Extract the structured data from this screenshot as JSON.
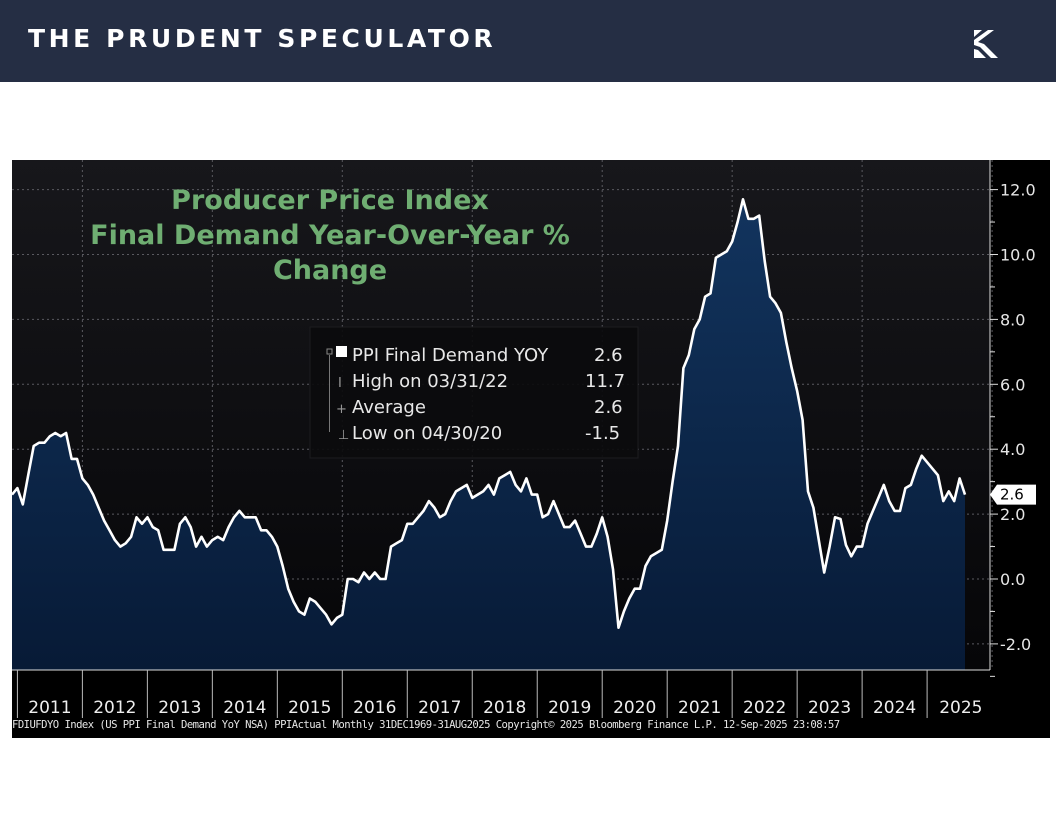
{
  "header": {
    "brand": "THE PRUDENT SPECULATOR",
    "logo_icon": "prudent-speculator-k-logo"
  },
  "colors": {
    "header_bg": "#252e44",
    "title_green": "#6fae72",
    "area_fill": "#0c2647",
    "line": "#ffffff",
    "plot_bg": "#111114"
  },
  "legend": {
    "series_label": "PPI Final Demand YOY",
    "series_value": "2.6",
    "rows": [
      {
        "label": "High on 03/31/22",
        "value": "11.7"
      },
      {
        "label": "Average",
        "value": "2.6"
      },
      {
        "label": "Low on 04/30/20",
        "value": "-1.5"
      }
    ]
  },
  "footer": "FDIUFDYO Index (US PPI Final Demand YoY NSA) PPIActual  Monthly 31DEC1969-31AUG2025 Copyright© 2025 Bloomberg Finance L.P.  12-Sep-2025 23:08:57",
  "chart_data": {
    "type": "area",
    "title_lines": [
      "Producer Price Index",
      "Final Demand Year-Over-Year %",
      "Change"
    ],
    "xlabel": "",
    "ylabel": "",
    "x_ticks": [
      "2011",
      "2012",
      "2013",
      "2014",
      "2015",
      "2016",
      "2017",
      "2018",
      "2019",
      "2020",
      "2021",
      "2022",
      "2023",
      "2024",
      "2025"
    ],
    "x_range": [
      "2010-12",
      "2025-08"
    ],
    "ylim": [
      -2.8,
      14.0
    ],
    "y_ticks": [
      "12.0",
      "10.0",
      "8.0",
      "6.0",
      "4.0",
      "2.0",
      "0.0",
      "-2.0"
    ],
    "y_axis_side": "right",
    "grid": true,
    "last_value_label": "2.6",
    "series": [
      {
        "name": "PPI Final Demand YOY",
        "points": [
          [
            "2010-12",
            2.6
          ],
          [
            "2011-01",
            2.8
          ],
          [
            "2011-02",
            2.3
          ],
          [
            "2011-03",
            3.2
          ],
          [
            "2011-04",
            4.1
          ],
          [
            "2011-05",
            4.2
          ],
          [
            "2011-06",
            4.2
          ],
          [
            "2011-07",
            4.4
          ],
          [
            "2011-08",
            4.5
          ],
          [
            "2011-09",
            4.4
          ],
          [
            "2011-10",
            4.5
          ],
          [
            "2011-11",
            3.7
          ],
          [
            "2011-12",
            3.7
          ],
          [
            "2012-01",
            3.1
          ],
          [
            "2012-02",
            2.9
          ],
          [
            "2012-03",
            2.6
          ],
          [
            "2012-04",
            2.2
          ],
          [
            "2012-05",
            1.8
          ],
          [
            "2012-06",
            1.5
          ],
          [
            "2012-07",
            1.2
          ],
          [
            "2012-08",
            1.0
          ],
          [
            "2012-09",
            1.1
          ],
          [
            "2012-10",
            1.3
          ],
          [
            "2012-11",
            1.9
          ],
          [
            "2012-12",
            1.7
          ],
          [
            "2013-01",
            1.9
          ],
          [
            "2013-02",
            1.6
          ],
          [
            "2013-03",
            1.5
          ],
          [
            "2013-04",
            0.9
          ],
          [
            "2013-05",
            0.9
          ],
          [
            "2013-06",
            0.9
          ],
          [
            "2013-07",
            1.7
          ],
          [
            "2013-08",
            1.9
          ],
          [
            "2013-09",
            1.6
          ],
          [
            "2013-10",
            1.0
          ],
          [
            "2013-11",
            1.3
          ],
          [
            "2013-12",
            1.0
          ],
          [
            "2014-01",
            1.2
          ],
          [
            "2014-02",
            1.3
          ],
          [
            "2014-03",
            1.2
          ],
          [
            "2014-04",
            1.6
          ],
          [
            "2014-05",
            1.9
          ],
          [
            "2014-06",
            2.1
          ],
          [
            "2014-07",
            1.9
          ],
          [
            "2014-08",
            1.9
          ],
          [
            "2014-09",
            1.9
          ],
          [
            "2014-10",
            1.5
          ],
          [
            "2014-11",
            1.5
          ],
          [
            "2014-12",
            1.3
          ],
          [
            "2015-01",
            1.0
          ],
          [
            "2015-02",
            0.4
          ],
          [
            "2015-03",
            -0.3
          ],
          [
            "2015-04",
            -0.7
          ],
          [
            "2015-05",
            -1.0
          ],
          [
            "2015-06",
            -1.1
          ],
          [
            "2015-07",
            -0.6
          ],
          [
            "2015-08",
            -0.7
          ],
          [
            "2015-09",
            -0.9
          ],
          [
            "2015-10",
            -1.1
          ],
          [
            "2015-11",
            -1.4
          ],
          [
            "2015-12",
            -1.2
          ],
          [
            "2016-01",
            -1.1
          ],
          [
            "2016-02",
            0.0
          ],
          [
            "2016-03",
            0.0
          ],
          [
            "2016-04",
            -0.1
          ],
          [
            "2016-05",
            0.2
          ],
          [
            "2016-06",
            0.0
          ],
          [
            "2016-07",
            0.2
          ],
          [
            "2016-08",
            0.0
          ],
          [
            "2016-09",
            0.0
          ],
          [
            "2016-10",
            1.0
          ],
          [
            "2016-11",
            1.1
          ],
          [
            "2016-12",
            1.2
          ],
          [
            "2017-01",
            1.7
          ],
          [
            "2017-02",
            1.7
          ],
          [
            "2017-03",
            1.9
          ],
          [
            "2017-04",
            2.1
          ],
          [
            "2017-05",
            2.4
          ],
          [
            "2017-06",
            2.2
          ],
          [
            "2017-07",
            1.9
          ],
          [
            "2017-08",
            2.0
          ],
          [
            "2017-09",
            2.4
          ],
          [
            "2017-10",
            2.7
          ],
          [
            "2017-11",
            2.8
          ],
          [
            "2017-12",
            2.9
          ],
          [
            "2018-01",
            2.5
          ],
          [
            "2018-02",
            2.6
          ],
          [
            "2018-03",
            2.7
          ],
          [
            "2018-04",
            2.9
          ],
          [
            "2018-05",
            2.6
          ],
          [
            "2018-06",
            3.1
          ],
          [
            "2018-07",
            3.2
          ],
          [
            "2018-08",
            3.3
          ],
          [
            "2018-09",
            2.9
          ],
          [
            "2018-10",
            2.7
          ],
          [
            "2018-11",
            3.1
          ],
          [
            "2018-12",
            2.6
          ],
          [
            "2019-01",
            2.6
          ],
          [
            "2019-02",
            1.9
          ],
          [
            "2019-03",
            2.0
          ],
          [
            "2019-04",
            2.4
          ],
          [
            "2019-05",
            2.0
          ],
          [
            "2019-06",
            1.6
          ],
          [
            "2019-07",
            1.6
          ],
          [
            "2019-08",
            1.8
          ],
          [
            "2019-09",
            1.4
          ],
          [
            "2019-10",
            1.0
          ],
          [
            "2019-11",
            1.0
          ],
          [
            "2019-12",
            1.4
          ],
          [
            "2020-01",
            1.9
          ],
          [
            "2020-02",
            1.3
          ],
          [
            "2020-03",
            0.3
          ],
          [
            "2020-04",
            -1.5
          ],
          [
            "2020-05",
            -1.0
          ],
          [
            "2020-06",
            -0.6
          ],
          [
            "2020-07",
            -0.3
          ],
          [
            "2020-08",
            -0.3
          ],
          [
            "2020-09",
            0.4
          ],
          [
            "2020-10",
            0.7
          ],
          [
            "2020-11",
            0.8
          ],
          [
            "2020-12",
            0.9
          ],
          [
            "2021-01",
            1.8
          ],
          [
            "2021-02",
            3.0
          ],
          [
            "2021-03",
            4.1
          ],
          [
            "2021-04",
            6.5
          ],
          [
            "2021-05",
            6.9
          ],
          [
            "2021-06",
            7.7
          ],
          [
            "2021-07",
            8.0
          ],
          [
            "2021-08",
            8.7
          ],
          [
            "2021-09",
            8.8
          ],
          [
            "2021-10",
            9.9
          ],
          [
            "2021-11",
            10.0
          ],
          [
            "2021-12",
            10.1
          ],
          [
            "2022-01",
            10.4
          ],
          [
            "2022-02",
            11.0
          ],
          [
            "2022-03",
            11.7
          ],
          [
            "2022-04",
            11.1
          ],
          [
            "2022-05",
            11.1
          ],
          [
            "2022-06",
            11.2
          ],
          [
            "2022-07",
            9.8
          ],
          [
            "2022-08",
            8.7
          ],
          [
            "2022-09",
            8.5
          ],
          [
            "2022-10",
            8.2
          ],
          [
            "2022-11",
            7.3
          ],
          [
            "2022-12",
            6.5
          ],
          [
            "2023-01",
            5.8
          ],
          [
            "2023-02",
            4.9
          ],
          [
            "2023-03",
            2.7
          ],
          [
            "2023-04",
            2.2
          ],
          [
            "2023-05",
            1.2
          ],
          [
            "2023-06",
            0.2
          ],
          [
            "2023-07",
            1.0
          ],
          [
            "2023-08",
            1.9
          ],
          [
            "2023-09",
            1.85
          ],
          [
            "2023-10",
            1.05
          ],
          [
            "2023-11",
            0.7
          ],
          [
            "2023-12",
            1.0
          ],
          [
            "2024-01",
            1.0
          ],
          [
            "2024-02",
            1.7
          ],
          [
            "2024-03",
            2.1
          ],
          [
            "2024-04",
            2.5
          ],
          [
            "2024-05",
            2.9
          ],
          [
            "2024-06",
            2.4
          ],
          [
            "2024-07",
            2.1
          ],
          [
            "2024-08",
            2.1
          ],
          [
            "2024-09",
            2.8
          ],
          [
            "2024-10",
            2.9
          ],
          [
            "2024-11",
            3.4
          ],
          [
            "2024-12",
            3.8
          ],
          [
            "2025-01",
            3.6
          ],
          [
            "2025-02",
            3.4
          ],
          [
            "2025-03",
            3.2
          ],
          [
            "2025-04",
            2.4
          ],
          [
            "2025-05",
            2.7
          ],
          [
            "2025-06",
            2.4
          ],
          [
            "2025-07",
            3.1
          ],
          [
            "2025-08",
            2.6
          ]
        ]
      }
    ]
  }
}
